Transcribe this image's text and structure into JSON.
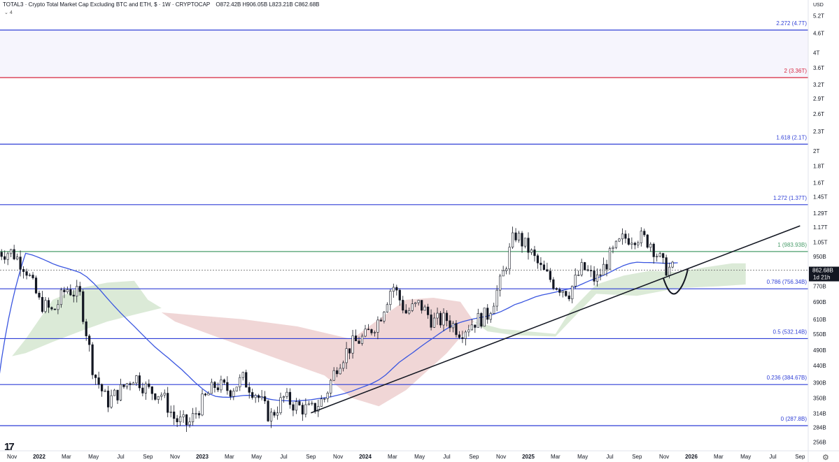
{
  "header": {
    "title": "TOTAL3 · Crypto Total Market Cap Excluding BTC and ETH, $ · 1W · CRYPTOCAP",
    "open": "O872.42B",
    "high": "H906.05B",
    "low": "L823.21B",
    "close": "C862.68B",
    "indicator_count": "4"
  },
  "axis": {
    "currency": "USD",
    "price_labels": [
      "5.2T",
      "4.6T",
      "4T",
      "3.6T",
      "3.2T",
      "2.9T",
      "2.6T",
      "2.3T",
      "2T",
      "1.8T",
      "1.6T",
      "1.45T",
      "1.29T",
      "1.17T",
      "1.05T",
      "950B",
      "770B",
      "690B",
      "610B",
      "550B",
      "490B",
      "440B",
      "390B",
      "350B",
      "314B",
      "284B",
      "256B"
    ],
    "time_labels": [
      "Nov",
      "2022",
      "Mar",
      "May",
      "Jul",
      "Sep",
      "Nov",
      "2023",
      "Mar",
      "May",
      "Jul",
      "Sep",
      "Nov",
      "2024",
      "Mar",
      "May",
      "Jul",
      "Sep",
      "Nov",
      "2025",
      "Mar",
      "May",
      "Jul",
      "Sep",
      "Nov",
      "2026",
      "Mar",
      "May",
      "Jul",
      "Sep"
    ],
    "bold_time_labels": [
      "2022",
      "2023",
      "2024",
      "2025",
      "2026"
    ]
  },
  "price_tag": {
    "value": "862.68B",
    "countdown": "1d 21h",
    "color": "#131722"
  },
  "chart_data": {
    "type": "candlestick",
    "title": "TOTAL3 · Crypto Total Market Cap Excluding BTC and ETH, $ · 1W · CRYPTOCAP",
    "y_scale": "log",
    "y_unit": "USD",
    "x_range": [
      "2021-10",
      "2026-09"
    ],
    "fib_levels": [
      {
        "label": "2.272 (4.7T)",
        "ratio": 2.272,
        "value": 4700000000000.0,
        "color": "#2f3fd6"
      },
      {
        "label": "2 (3.36T)",
        "ratio": 2,
        "value": 3360000000000.0,
        "color": "#d6263f"
      },
      {
        "label": "1.618 (2.1T)",
        "ratio": 1.618,
        "value": 2100000000000.0,
        "color": "#2f3fd6"
      },
      {
        "label": "1.272 (1.37T)",
        "ratio": 1.272,
        "value": 1370000000000.0,
        "color": "#2f3fd6"
      },
      {
        "label": "1 (983.93B)",
        "ratio": 1,
        "value": 983930000000.0,
        "color": "#4a9d6b"
      },
      {
        "label": "0.786 (756.34B)",
        "ratio": 0.786,
        "value": 756340000000.0,
        "color": "#2f3fd6"
      },
      {
        "label": "0.5 (532.14B)",
        "ratio": 0.5,
        "value": 532140000000.0,
        "color": "#2f3fd6"
      },
      {
        "label": "0.236 (384.67B)",
        "ratio": 0.236,
        "value": 384670000000.0,
        "color": "#2f3fd6"
      },
      {
        "label": "0 (287.8B)",
        "ratio": 0,
        "value": 287800000000.0,
        "color": "#2f3fd6"
      }
    ],
    "last_close": 862680000000.0,
    "price_path": [
      [
        "2021-11",
        980000000000.0
      ],
      [
        "2021-12",
        880000000000.0
      ],
      [
        "2022-01",
        690000000000.0
      ],
      [
        "2022-02",
        640000000000.0
      ],
      [
        "2022-03",
        760000000000.0
      ],
      [
        "2022-04",
        720000000000.0
      ],
      [
        "2022-05",
        420000000000.0
      ],
      [
        "2022-06",
        340000000000.0
      ],
      [
        "2022-07",
        370000000000.0
      ],
      [
        "2022-08",
        410000000000.0
      ],
      [
        "2022-09",
        370000000000.0
      ],
      [
        "2022-10",
        360000000000.0
      ],
      [
        "2022-11",
        300000000000.0
      ],
      [
        "2022-12",
        290000000000.0
      ],
      [
        "2023-01",
        340000000000.0
      ],
      [
        "2023-02",
        385000000000.0
      ],
      [
        "2023-03",
        370000000000.0
      ],
      [
        "2023-04",
        400000000000.0
      ],
      [
        "2023-05",
        360000000000.0
      ],
      [
        "2023-06",
        305000000000.0
      ],
      [
        "2023-07",
        350000000000.0
      ],
      [
        "2023-08",
        330000000000.0
      ],
      [
        "2023-09",
        320000000000.0
      ],
      [
        "2023-10",
        350000000000.0
      ],
      [
        "2023-11",
        450000000000.0
      ],
      [
        "2023-12",
        510000000000.0
      ],
      [
        "2024-01",
        540000000000.0
      ],
      [
        "2024-02",
        610000000000.0
      ],
      [
        "2024-03",
        780000000000.0
      ],
      [
        "2024-04",
        640000000000.0
      ],
      [
        "2024-05",
        680000000000.0
      ],
      [
        "2024-06",
        600000000000.0
      ],
      [
        "2024-07",
        610000000000.0
      ],
      [
        "2024-08",
        560000000000.0
      ],
      [
        "2024-09",
        600000000000.0
      ],
      [
        "2024-10",
        630000000000.0
      ],
      [
        "2024-11",
        800000000000.0
      ],
      [
        "2024-12",
        1120000000000.0
      ],
      [
        "2025-01",
        1000000000000.0
      ],
      [
        "2025-02",
        860000000000.0
      ],
      [
        "2025-03",
        780000000000.0
      ],
      [
        "2025-04",
        740000000000.0
      ],
      [
        "2025-05",
        880000000000.0
      ],
      [
        "2025-06",
        800000000000.0
      ],
      [
        "2025-07",
        950000000000.0
      ],
      [
        "2025-08",
        1080000000000.0
      ],
      [
        "2025-09",
        1100000000000.0
      ],
      [
        "2025-10",
        1050000000000.0
      ],
      [
        "2025-11",
        880000000000.0
      ],
      [
        "2025-12",
        862680000000.0
      ]
    ],
    "moving_average_color": "#3a56e0",
    "cloud": {
      "bull_color": "#d7e8d3",
      "bear_color": "#eed2d2"
    },
    "trendline": {
      "from": [
        "2023-09",
        315000000000.0
      ],
      "to": [
        "2026-09",
        1180000000000.0
      ],
      "color": "#131722"
    }
  }
}
